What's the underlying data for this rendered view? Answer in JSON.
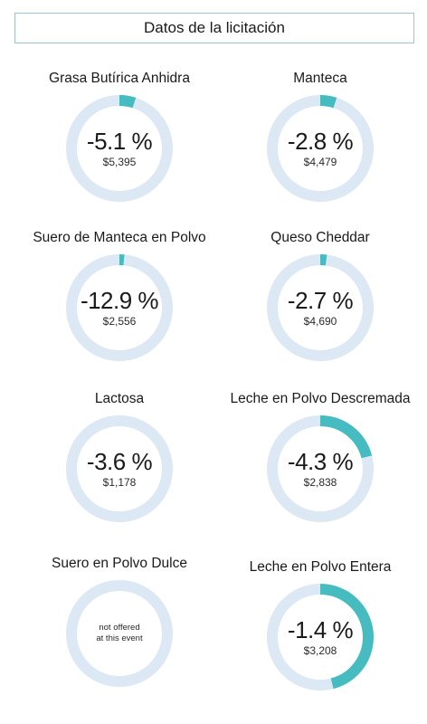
{
  "header": {
    "title": "Datos de la licitación"
  },
  "colors": {
    "track": "#dce8f4",
    "fill": "#46bcc0",
    "header_border": "#9ec3cf"
  },
  "chart_data": {
    "type": "gauge",
    "series": [
      {
        "name": "Grasa Butírica Anhidra",
        "change_label": "-5.1 %",
        "price_label": "$5,395",
        "change": -5.1,
        "price": 5395,
        "fill_fraction": 0.05
      },
      {
        "name": "Manteca",
        "change_label": "-2.8 %",
        "price_label": "$4,479",
        "change": -2.8,
        "price": 4479,
        "fill_fraction": 0.05
      },
      {
        "name": "Suero de Manteca en Polvo",
        "change_label": "-12.9 %",
        "price_label": "$2,556",
        "change": -12.9,
        "price": 2556,
        "fill_fraction": 0.015
      },
      {
        "name": "Queso Cheddar",
        "change_label": "-2.7 %",
        "price_label": "$4,690",
        "change": -2.7,
        "price": 4690,
        "fill_fraction": 0.02
      },
      {
        "name": "Lactosa",
        "change_label": "-3.6 %",
        "price_label": "$1,178",
        "change": -3.6,
        "price": 1178,
        "fill_fraction": 0.0
      },
      {
        "name": "Leche en Polvo Descremada",
        "change_label": "-4.3 %",
        "price_label": "$2,838",
        "change": -4.3,
        "price": 2838,
        "fill_fraction": 0.21
      },
      {
        "name": "Suero en Polvo Dulce",
        "not_offered_line1": "not offered",
        "not_offered_line2": "at this event",
        "fill_fraction": 0.0
      },
      {
        "name": "Leche en Polvo Entera",
        "change_label": "-1.4 %",
        "price_label": "$3,208",
        "change": -1.4,
        "price": 3208,
        "fill_fraction": 0.46
      }
    ]
  }
}
